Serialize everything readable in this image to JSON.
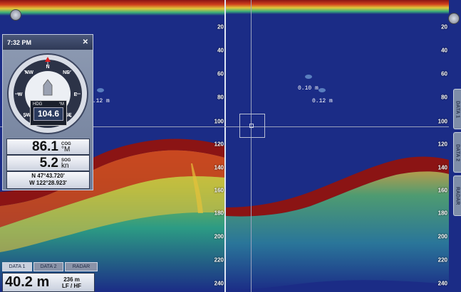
{
  "colors": {
    "water": "#1b2c86",
    "bottom": "#8b1414",
    "noise": "#39b36a"
  },
  "panel": {
    "time": "7:32 PM",
    "close_icon": "close-icon"
  },
  "compass": {
    "headings": [
      "N",
      "NE",
      "E",
      "SE",
      "S",
      "SW",
      "W",
      "NW"
    ],
    "hdg_label": "HDG",
    "hdg_unit": "°M",
    "hdg_value": "104.6"
  },
  "cog": {
    "value": "86.1",
    "label": "COG",
    "unit": "°M"
  },
  "sog": {
    "value": "5.2",
    "label": "SOG",
    "unit": "kn"
  },
  "position": {
    "lat": "N 47°43.720'",
    "lon": "W 122°28.923'"
  },
  "tabs_bottom": [
    "DATA 1",
    "DATA 2",
    "RADAR"
  ],
  "tabs_side": [
    "DATA 1",
    "DATA 2",
    "RADAR"
  ],
  "depth": {
    "value": "40.2 m",
    "range": "236 m",
    "freq": "LF / HF"
  },
  "left_scale": [
    "20",
    "40",
    "60",
    "80",
    "100",
    "120",
    "140",
    "160",
    "180",
    "200",
    "220",
    "240"
  ],
  "right_scale": [
    "20",
    "40",
    "60",
    "80",
    "100",
    "120",
    "140",
    "160",
    "180",
    "200",
    "220",
    "240"
  ],
  "targets": {
    "left1": "0.12 m",
    "right1": "0.10 m",
    "right2": "0.12 m"
  }
}
